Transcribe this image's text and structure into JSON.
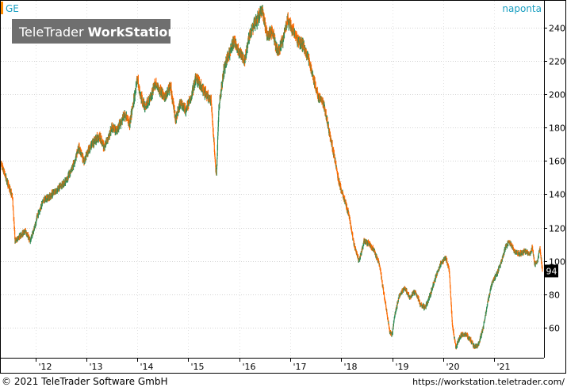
{
  "header": {
    "symbol": "GE",
    "period": "naponta",
    "watermark_plain": "TeleTrader",
    "watermark_bold": "WorkStation"
  },
  "footer": {
    "copyright": "© 2021 TeleTrader Software GmbH",
    "url": "https://workstation.teletrader.com/"
  },
  "colors": {
    "up": "#2e8b57",
    "down": "#ff6a00",
    "accent": "#1a9fc1",
    "symbol_marker": "#ff8c00",
    "last_badge_bg": "#000000"
  },
  "chart_data": {
    "type": "candlestick",
    "symbol": "GE",
    "interval": "naponta",
    "title": "",
    "xlabel": "",
    "ylabel": "",
    "x_tick_labels": [
      "'12",
      "'13",
      "'14",
      "'15",
      "'16",
      "'17",
      "'18",
      "'19",
      "'20",
      "'21"
    ],
    "x_tick_years": [
      2012,
      2013,
      2014,
      2015,
      2016,
      2017,
      2018,
      2019,
      2020,
      2021
    ],
    "y_ticks": [
      60,
      80,
      100,
      120,
      140,
      160,
      180,
      200,
      220,
      240
    ],
    "ylim": [
      42,
      256
    ],
    "xlim": [
      2011.32,
      2021.98
    ],
    "grid": true,
    "last_value": "94",
    "price_path": [
      [
        2011.33,
        158
      ],
      [
        2011.42,
        150
      ],
      [
        2011.55,
        138
      ],
      [
        2011.6,
        112
      ],
      [
        2011.7,
        115
      ],
      [
        2011.8,
        118
      ],
      [
        2011.9,
        112
      ],
      [
        2011.98,
        120
      ],
      [
        2012.05,
        128
      ],
      [
        2012.15,
        136
      ],
      [
        2012.25,
        138
      ],
      [
        2012.4,
        142
      ],
      [
        2012.6,
        148
      ],
      [
        2012.75,
        158
      ],
      [
        2012.85,
        168
      ],
      [
        2012.95,
        160
      ],
      [
        2013.1,
        170
      ],
      [
        2013.25,
        175
      ],
      [
        2013.35,
        168
      ],
      [
        2013.5,
        180
      ],
      [
        2013.6,
        178
      ],
      [
        2013.75,
        188
      ],
      [
        2013.85,
        182
      ],
      [
        2013.95,
        200
      ],
      [
        2014.0,
        210
      ],
      [
        2014.05,
        200
      ],
      [
        2014.15,
        192
      ],
      [
        2014.25,
        198
      ],
      [
        2014.35,
        206
      ],
      [
        2014.45,
        202
      ],
      [
        2014.55,
        198
      ],
      [
        2014.65,
        205
      ],
      [
        2014.75,
        185
      ],
      [
        2014.85,
        195
      ],
      [
        2014.95,
        190
      ],
      [
        2015.05,
        198
      ],
      [
        2015.15,
        210
      ],
      [
        2015.25,
        205
      ],
      [
        2015.35,
        200
      ],
      [
        2015.45,
        195
      ],
      [
        2015.55,
        150
      ],
      [
        2015.6,
        192
      ],
      [
        2015.7,
        215
      ],
      [
        2015.8,
        225
      ],
      [
        2015.9,
        232
      ],
      [
        2016.0,
        225
      ],
      [
        2016.1,
        220
      ],
      [
        2016.2,
        235
      ],
      [
        2016.3,
        242
      ],
      [
        2016.45,
        250
      ],
      [
        2016.55,
        235
      ],
      [
        2016.65,
        238
      ],
      [
        2016.75,
        225
      ],
      [
        2016.85,
        232
      ],
      [
        2016.95,
        245
      ],
      [
        2017.05,
        238
      ],
      [
        2017.15,
        232
      ],
      [
        2017.25,
        230
      ],
      [
        2017.35,
        222
      ],
      [
        2017.45,
        210
      ],
      [
        2017.55,
        198
      ],
      [
        2017.65,
        195
      ],
      [
        2017.75,
        180
      ],
      [
        2017.85,
        165
      ],
      [
        2017.95,
        148
      ],
      [
        2018.05,
        138
      ],
      [
        2018.15,
        128
      ],
      [
        2018.25,
        110
      ],
      [
        2018.35,
        100
      ],
      [
        2018.45,
        112
      ],
      [
        2018.55,
        110
      ],
      [
        2018.65,
        106
      ],
      [
        2018.75,
        98
      ],
      [
        2018.85,
        78
      ],
      [
        2018.95,
        58
      ],
      [
        2019.0,
        56
      ],
      [
        2019.05,
        68
      ],
      [
        2019.15,
        80
      ],
      [
        2019.25,
        84
      ],
      [
        2019.35,
        78
      ],
      [
        2019.45,
        82
      ],
      [
        2019.55,
        74
      ],
      [
        2019.65,
        72
      ],
      [
        2019.75,
        80
      ],
      [
        2019.85,
        90
      ],
      [
        2019.95,
        98
      ],
      [
        2020.05,
        102
      ],
      [
        2020.12,
        95
      ],
      [
        2020.18,
        62
      ],
      [
        2020.25,
        48
      ],
      [
        2020.35,
        56
      ],
      [
        2020.45,
        56
      ],
      [
        2020.55,
        52
      ],
      [
        2020.62,
        48
      ],
      [
        2020.7,
        50
      ],
      [
        2020.8,
        62
      ],
      [
        2020.88,
        76
      ],
      [
        2020.95,
        86
      ],
      [
        2021.05,
        92
      ],
      [
        2021.15,
        100
      ],
      [
        2021.22,
        108
      ],
      [
        2021.3,
        112
      ],
      [
        2021.4,
        106
      ],
      [
        2021.5,
        104
      ],
      [
        2021.6,
        106
      ],
      [
        2021.7,
        104
      ],
      [
        2021.75,
        108
      ],
      [
        2021.8,
        98
      ],
      [
        2021.85,
        100
      ],
      [
        2021.9,
        108
      ],
      [
        2021.95,
        94
      ]
    ]
  }
}
